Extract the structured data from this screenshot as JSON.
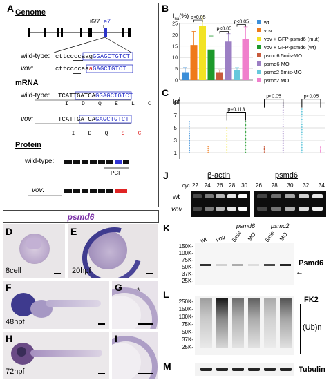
{
  "panels": {
    "A": "A",
    "B": "B",
    "C": "C",
    "D": "D",
    "E": "E",
    "F": "F",
    "G": "G",
    "H": "H",
    "I": "I",
    "J": "J",
    "K": "K",
    "L": "L",
    "M": "M"
  },
  "panelA": {
    "genome_heading": "Genome",
    "exon_label_i": "i6/7",
    "exon_label_e": "e7",
    "wt_label": "wild-type:",
    "wt_seq_intron": "cttccccaag",
    "wt_seq_exon": "GGAGCTGTCT",
    "vov_label": "vov:",
    "vov_seq_intron_a": "cttccccaa",
    "vov_seq_mut": "a",
    "vov_seq_exon": "GAGCTGTCT",
    "mrna_heading": "mRNA",
    "mrna_wt_label": "wild-type:",
    "mrna_wt_a": "TCATTGATCA",
    "mrna_wt_b": "GGAGCTGTCT",
    "mrna_wt_aa": "I    D    Q    E    L    C",
    "mrna_vov_label": "vov:",
    "mrna_vov_a": "TCATTGATCA",
    "mrna_vov_b": "GAGCTGTCT",
    "mrna_vov_aa_a": "I    D    Q",
    "mrna_vov_aa_b": "S    C",
    "protein_heading": "Protein",
    "protein_wt_label": "wild-type:",
    "protein_vov_label": "vov:",
    "pci_label": "PCI"
  },
  "panelB": {
    "ylabel": "Ina (%)",
    "ylabel_main": "I",
    "ylabel_sub": "na",
    "ylabel_unit": "(%)",
    "yticks": [
      "0",
      "5",
      "10",
      "15",
      "20",
      "25"
    ],
    "sig1": "p<0.05",
    "sig2": "p<0.05",
    "sig3": "p<0.05"
  },
  "legend": [
    {
      "label": "wt",
      "color": "#3d8fd9"
    },
    {
      "label": "vov",
      "color": "#ef7a1a"
    },
    {
      "label": "vov + GFP-psmd6 (mut)",
      "color": "#f2e324"
    },
    {
      "label": "vov + GFP-psmd6 (wt)",
      "color": "#1d9a2b"
    },
    {
      "label": "psmd6 5mis-MO",
      "color": "#c85a3c"
    },
    {
      "label": "psmd6 MO",
      "color": "#9c7fc4"
    },
    {
      "label": "psmc2 5mis-MO",
      "color": "#66c8dc"
    },
    {
      "label": "psmc2 MO",
      "color": "#f07fcc"
    }
  ],
  "chart_data": [
    {
      "type": "bar",
      "title": "",
      "ylabel": "Ina (%)",
      "ylim": [
        0,
        25
      ],
      "categories": [
        "wt",
        "vov",
        "vov + GFP-psmd6 (mut)",
        "vov + GFP-psmd6 (wt)",
        "psmd6 5mis-MO",
        "psmd6 MO",
        "psmc2 5mis-MO",
        "psmc2 MO"
      ],
      "values": [
        3.5,
        15.5,
        24,
        13.5,
        3.5,
        17,
        4.5,
        18
      ],
      "errors": [
        2.0,
        6.0,
        4.0,
        6.0,
        1.0,
        3.5,
        1.0,
        5.5
      ],
      "annotations": [
        "p<0.05",
        "p<0.05",
        "p<0.05"
      ]
    },
    {
      "type": "scatter",
      "title": "",
      "ylabel": "Inf",
      "ylim": [
        0,
        10
      ],
      "yticks": [
        1,
        3,
        5,
        7,
        9
      ],
      "categories": [
        "wt",
        "vov",
        "vov + GFP-psmd6 (mut)",
        "vov + GFP-psmd6 (wt)",
        "psmd6 5mis-MO",
        "psmd6 MO",
        "psmc2 5mis-MO",
        "psmc2 MO"
      ],
      "annotations": [
        "p=0.113",
        "p<0.05",
        "p<0.05"
      ]
    }
  ],
  "panelC": {
    "ylabel": "Inf",
    "yticks": [
      "1",
      "3",
      "5",
      "7",
      "9"
    ],
    "sig1": "p=0.113",
    "sig2": "p<0.05",
    "sig3": "p<0.05"
  },
  "title_box": "psmd6",
  "photo_labels": {
    "D": "8cell",
    "E": "20hpf",
    "F": "48hpf",
    "H": "72hpf"
  },
  "panelJ": {
    "header_actin": "β-actin",
    "header_psmd6": "psmd6",
    "cyc_label": "cyc",
    "cycles_actin": [
      "22",
      "24",
      "26",
      "28",
      "30"
    ],
    "cycles_psmd6": [
      "26",
      "28",
      "30",
      "32",
      "34"
    ],
    "row_wt": "wt",
    "row_vov": "vov"
  },
  "panelK": {
    "col_wt": "wt",
    "col_vov": "vov",
    "group_psmd6": "psmd6",
    "group_psmc2": "psmc2",
    "col_5mis_a": "5mis",
    "col_mo_a": "MO",
    "col_5mis_b": "5mis",
    "col_mo_b": "MO",
    "markers": [
      "150K-",
      "100K-",
      "75K-",
      "50K-",
      "37K-",
      "25K-"
    ],
    "protein_label": "Psmd6",
    "arrow": "←"
  },
  "panelL": {
    "markers": [
      "250K-",
      "150K-",
      "100K-",
      "75K-",
      "50K-",
      "37K-",
      "25K-"
    ],
    "label_fk2": "FK2",
    "label_ub": "(Ub)n"
  },
  "panelM": {
    "label": "Tubulin"
  }
}
